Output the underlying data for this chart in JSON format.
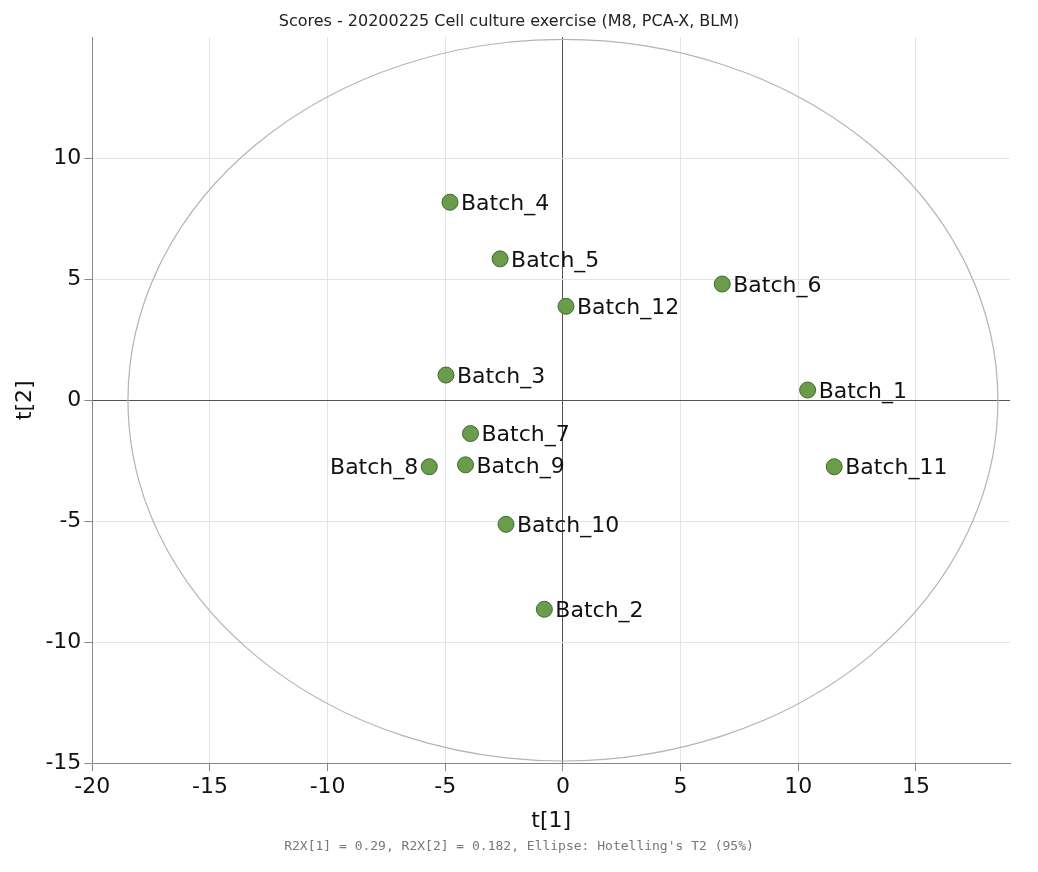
{
  "chart_data": {
    "type": "scatter",
    "title": "Scores - 20200225 Cell culture exercise (M8, PCA-X, BLM)",
    "xlabel": "t[1]",
    "ylabel": "t[2]",
    "xlim": [
      -20,
      19
    ],
    "ylim": [
      -15,
      15
    ],
    "xticks": [
      -20,
      -15,
      -10,
      -5,
      0,
      5,
      10,
      15
    ],
    "yticks": [
      -15,
      -10,
      -5,
      0,
      5,
      10
    ],
    "grid": true,
    "legend": false,
    "marker": "circle",
    "series": [
      {
        "type": "scatter",
        "color": "#6a9c4c",
        "x": [
          -4.8,
          -2.67,
          6.77,
          0.13,
          -4.97,
          10.4,
          -3.93,
          -4.14,
          -5.68,
          11.53,
          -2.42,
          -0.79
        ],
        "values": [
          8.18,
          5.84,
          4.8,
          3.88,
          1.04,
          0.42,
          -1.38,
          -2.67,
          -2.75,
          -2.75,
          -5.13,
          -8.64
        ]
      }
    ],
    "annotations": [
      {
        "text": "Batch_4",
        "x": -4.8,
        "y": 8.18
      },
      {
        "text": "Batch_5",
        "x": -2.67,
        "y": 5.84
      },
      {
        "text": "Batch_6",
        "x": 6.77,
        "y": 4.8
      },
      {
        "text": "Batch_12",
        "x": 0.13,
        "y": 3.88
      },
      {
        "text": "Batch_3",
        "x": -4.97,
        "y": 1.04
      },
      {
        "text": "Batch_1",
        "x": 10.4,
        "y": 0.42
      },
      {
        "text": "Batch_7",
        "x": -3.93,
        "y": -1.38
      },
      {
        "text": "Batch_9",
        "x": -4.14,
        "y": -2.67
      },
      {
        "text": "Batch_8",
        "x": -5.68,
        "y": -2.75
      },
      {
        "text": "Batch_11",
        "x": 11.53,
        "y": -2.75
      },
      {
        "text": "Batch_10",
        "x": -2.42,
        "y": -5.13
      },
      {
        "text": "Batch_2",
        "x": -0.79,
        "y": -8.64
      },
      "R2X[1] = 0.29, R2X[2] = 0.182, Ellipse: Hotelling's T2 (95%)"
    ]
  }
}
